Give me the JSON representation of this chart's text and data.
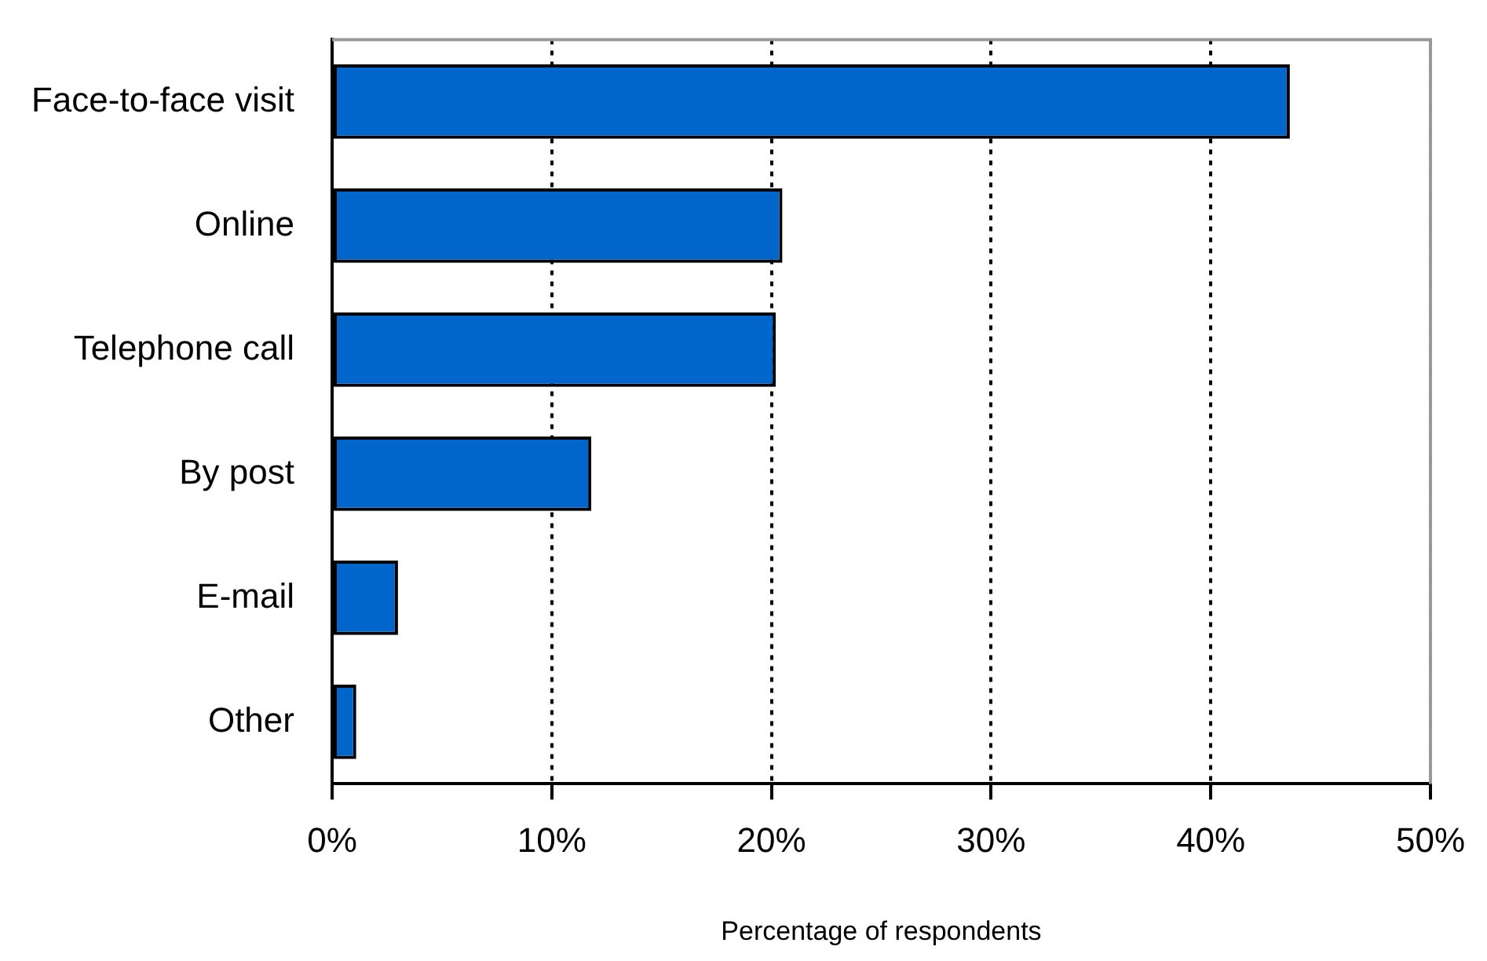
{
  "chart_data": {
    "type": "bar",
    "orientation": "horizontal",
    "xlabel": "Percentage of respondents",
    "categories": [
      "Face-to-face visit",
      "Online",
      "Telephone call",
      "By post",
      "E-mail",
      "Other"
    ],
    "values": [
      43.6,
      20.5,
      20.2,
      11.8,
      3.0,
      1.1
    ],
    "color": "#0066cc",
    "xlim": [
      0,
      50
    ],
    "xticks": [
      {
        "value": 0,
        "label": "0%"
      },
      {
        "value": 10,
        "label": "10%"
      },
      {
        "value": 20,
        "label": "20%"
      },
      {
        "value": 30,
        "label": "30%"
      },
      {
        "value": 40,
        "label": "40%"
      },
      {
        "value": 50,
        "label": "50%"
      }
    ],
    "grid": "x",
    "line_style": "dotted",
    "legend": false
  }
}
